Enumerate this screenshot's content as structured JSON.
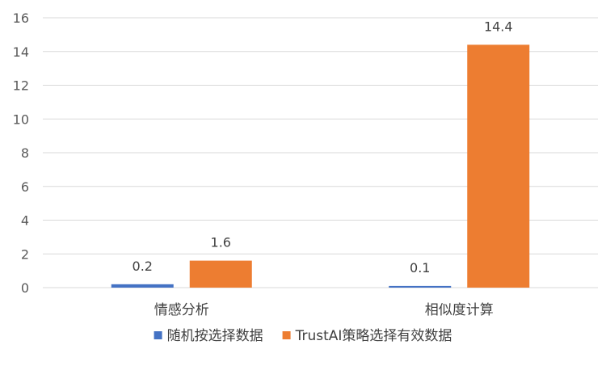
{
  "chart_data": {
    "type": "bar",
    "title": "",
    "xlabel": "",
    "ylabel": "",
    "categories": [
      "情感分析",
      "相似度计算"
    ],
    "series": [
      {
        "name": "随机按选择数据",
        "values": [
          0.2,
          0.1
        ],
        "color": "#4472C4"
      },
      {
        "name": "TrustAI策略选择有效数据",
        "values": [
          1.6,
          14.4
        ],
        "color": "#ED7D31"
      }
    ],
    "ylim": [
      0,
      16
    ],
    "yticks": [
      0,
      2,
      4,
      6,
      8,
      10,
      12,
      14,
      16
    ],
    "grid": true,
    "legend": "bottom",
    "data_labels": true
  }
}
